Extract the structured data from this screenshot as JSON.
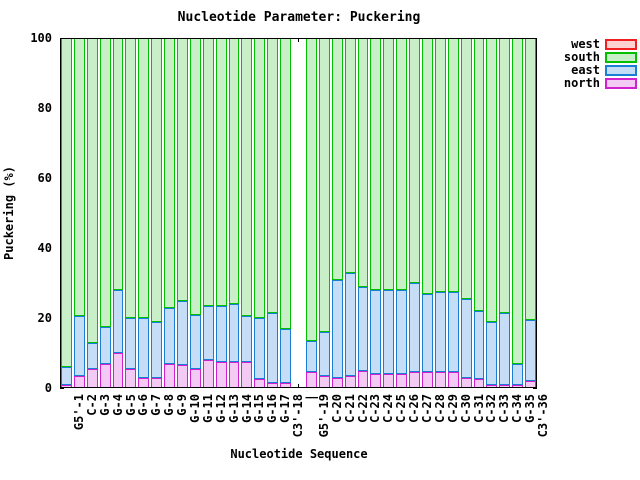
{
  "title": "Nucleotide Parameter: Puckering",
  "axes": {
    "y_label": "Puckering (%)",
    "x_label": "Nucleotide Sequence",
    "y_ticks": [
      0,
      20,
      40,
      60,
      80,
      100
    ]
  },
  "legend": [
    {
      "label": "west",
      "stroke": "#f02020",
      "fill": "#ffd2d2"
    },
    {
      "label": "south",
      "stroke": "#00c000",
      "fill": "#c9efc9"
    },
    {
      "label": "east",
      "stroke": "#1a7fd4",
      "fill": "#c5ddf6"
    },
    {
      "label": "north",
      "stroke": "#d020d0",
      "fill": "#f3caf3"
    }
  ],
  "chart_data": {
    "type": "bar",
    "stacked": true,
    "title": "Nucleotide Parameter: Puckering",
    "xlabel": "Nucleotide Sequence",
    "ylabel": "Puckering (%)",
    "ylim": [
      0,
      100
    ],
    "grid": false,
    "legend_position": "right-top",
    "gap_index": 18,
    "categories": [
      "G5'-1",
      "C-2",
      "G-3",
      "G-4",
      "G-5",
      "G-6",
      "G-7",
      "G-8",
      "G-9",
      "G-10",
      "G-11",
      "G-12",
      "G-13",
      "G-14",
      "G-15",
      "G-16",
      "G-17",
      "C3'-18",
      "|",
      "G5'-19",
      "C-20",
      "C-21",
      "C-22",
      "C-23",
      "C-24",
      "C-25",
      "C-26",
      "C-27",
      "C-28",
      "C-29",
      "C-30",
      "C-31",
      "C-32",
      "C-33",
      "C-34",
      "G-35",
      "C3'-36"
    ],
    "stack_order": [
      "north",
      "east",
      "south",
      "west"
    ],
    "series": [
      {
        "name": "west",
        "values": [
          0,
          0,
          0,
          0,
          0,
          0,
          0,
          0,
          0,
          0,
          0,
          0,
          0,
          0,
          0,
          0,
          0,
          0,
          0,
          0,
          0,
          0,
          0,
          0,
          0,
          0,
          0,
          0,
          0,
          0,
          0,
          0,
          0,
          0,
          0,
          0,
          0
        ]
      },
      {
        "name": "south",
        "values": [
          94,
          79.5,
          87,
          82.5,
          72,
          80,
          80,
          81,
          77,
          75,
          79,
          76.5,
          76.5,
          76,
          79.5,
          80,
          78.5,
          83,
          0,
          86.5,
          84,
          69,
          67,
          71,
          72,
          72,
          72,
          70,
          73,
          72.5,
          72.5,
          74.5,
          78,
          81,
          78.5,
          93,
          80.5
        ]
      },
      {
        "name": "east",
        "values": [
          5,
          17,
          7.5,
          10.5,
          18,
          14.5,
          17,
          16,
          16,
          18.5,
          15.5,
          15.5,
          16,
          16.5,
          13,
          17.5,
          20,
          15.5,
          0,
          9,
          12.5,
          28,
          29.5,
          24,
          24,
          24,
          24,
          25.5,
          22.5,
          23,
          23,
          22.5,
          19.5,
          18,
          20.5,
          6,
          17.5
        ]
      },
      {
        "name": "north",
        "values": [
          1,
          3.5,
          5.5,
          7,
          10,
          5.5,
          3,
          3,
          7,
          6.5,
          5.5,
          8,
          7.5,
          7.5,
          7.5,
          2.5,
          1.5,
          1.5,
          0,
          4.5,
          3.5,
          3,
          3.5,
          5,
          4,
          4,
          4,
          4.5,
          4.5,
          4.5,
          4.5,
          3,
          2.5,
          1,
          1,
          1,
          2
        ]
      }
    ]
  }
}
